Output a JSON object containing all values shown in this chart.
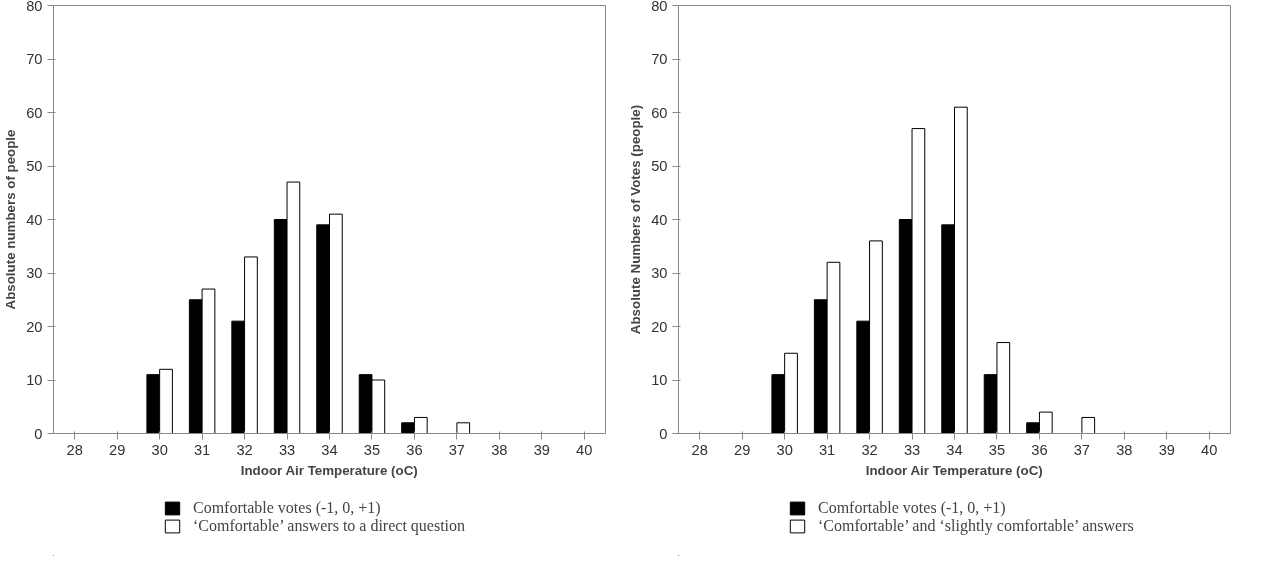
{
  "chart_data": [
    {
      "type": "bar",
      "xlabel": "Indoor Air Temperature (oC)",
      "ylabel": "Absolute numbers of people",
      "categories": [
        "28",
        "29",
        "30",
        "31",
        "32",
        "33",
        "34",
        "35",
        "36",
        "37",
        "38",
        "39",
        "40"
      ],
      "series": [
        {
          "name": "Comfortable votes (-1, 0, +1)",
          "color": "#000000",
          "values": [
            0,
            0,
            11,
            25,
            21,
            40,
            39,
            11,
            2,
            0,
            0,
            0,
            0
          ]
        },
        {
          "name": "‘Comfortable’ answers to a direct question",
          "color": "#ffffff",
          "values": [
            0,
            0,
            12,
            27,
            33,
            47,
            41,
            10,
            3,
            2,
            0,
            0,
            0
          ]
        }
      ],
      "ylim": [
        0,
        80
      ],
      "yticks": [
        0,
        10,
        20,
        30,
        40,
        50,
        60,
        70,
        80
      ],
      "grid": false,
      "legend": "bottom"
    },
    {
      "type": "bar",
      "xlabel": "Indoor Air Temperature (oC)",
      "ylabel": "Absolute Numbers of Votes (people)",
      "categories": [
        "28",
        "29",
        "30",
        "31",
        "32",
        "33",
        "34",
        "35",
        "36",
        "37",
        "38",
        "39",
        "40"
      ],
      "series": [
        {
          "name": "Comfortable votes (-1, 0, +1)",
          "color": "#000000",
          "values": [
            0,
            0,
            11,
            25,
            21,
            40,
            39,
            11,
            2,
            0,
            0,
            0,
            0
          ]
        },
        {
          "name": "‘Comfortable’ and ‘slightly comfortable’ answers",
          "color": "#ffffff",
          "values": [
            0,
            0,
            15,
            32,
            36,
            57,
            61,
            17,
            4,
            3,
            0,
            0,
            0
          ]
        }
      ],
      "ylim": [
        0,
        80
      ],
      "yticks": [
        0,
        10,
        20,
        30,
        40,
        50,
        60,
        70,
        80
      ],
      "grid": false,
      "legend": "bottom"
    }
  ]
}
